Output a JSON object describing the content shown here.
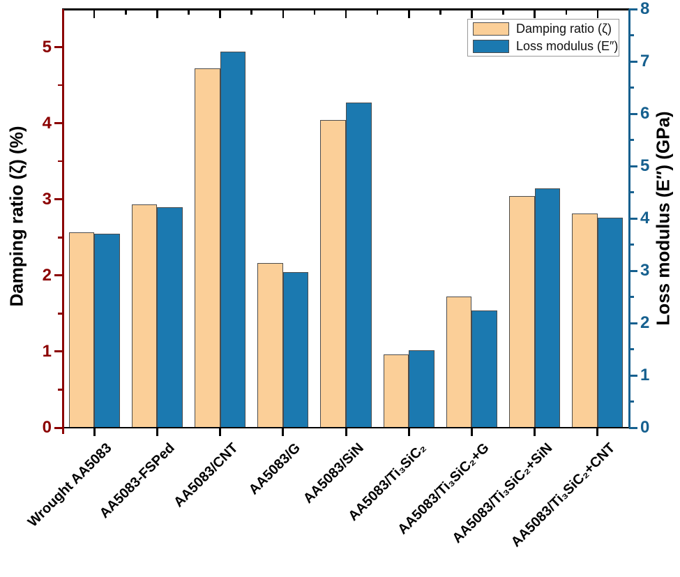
{
  "figure": {
    "left_axis": {
      "title": "Damping ratio (ζ) (%)",
      "color": "#8b0000",
      "tick_labels": [
        "0",
        "1",
        "2",
        "3",
        "4",
        "5"
      ]
    },
    "right_axis": {
      "title": "Loss modulus (E″) (GPa)",
      "color": "#16608f",
      "tick_labels": [
        "0",
        "1",
        "2",
        "3",
        "4",
        "5",
        "6",
        "7",
        "8"
      ]
    },
    "legend": {
      "items": [
        {
          "label": "Damping ratio (ζ)",
          "color": "#fbcf98"
        },
        {
          "label": "Loss modulus (E″)",
          "color": "#1b79b0"
        }
      ]
    }
  },
  "chart_data": {
    "type": "bar",
    "title": "",
    "categories": [
      "Wrought AA5083",
      "AA5083-FSPed",
      "AA5083/CNT",
      "AA5083/G",
      "AA5083/SiN",
      "AA5083/Ti₃SiC₂",
      "AA5083/Ti₃SiC₂+G",
      "AA5083/Ti₃SiC₂+SiN",
      "AA5083/Ti₃SiC₂+CNT"
    ],
    "series": [
      {
        "name": "Damping ratio (ζ)",
        "axis": "left",
        "unit": "%",
        "color": "#fbcf98",
        "values": [
          2.57,
          2.93,
          4.72,
          2.16,
          4.04,
          0.96,
          1.72,
          3.04,
          2.81
        ]
      },
      {
        "name": "Loss modulus (E″)",
        "axis": "right",
        "unit": "GPa",
        "color": "#1b79b0",
        "values": [
          3.71,
          4.21,
          7.19,
          2.98,
          6.21,
          1.48,
          2.24,
          4.58,
          4.02
        ]
      }
    ],
    "left_ylabel": "Damping ratio (ζ) (%)",
    "right_ylabel": "Loss modulus (E″) (GPa)",
    "left_ylim": [
      0,
      5.5
    ],
    "right_ylim": [
      0,
      8
    ],
    "left_major_ticks": [
      0,
      1,
      2,
      3,
      4,
      5
    ],
    "right_major_ticks": [
      0,
      1,
      2,
      3,
      4,
      5,
      6,
      7,
      8
    ],
    "minor_tick_step": 0.5,
    "grid": false,
    "legend_position": "top-right"
  }
}
